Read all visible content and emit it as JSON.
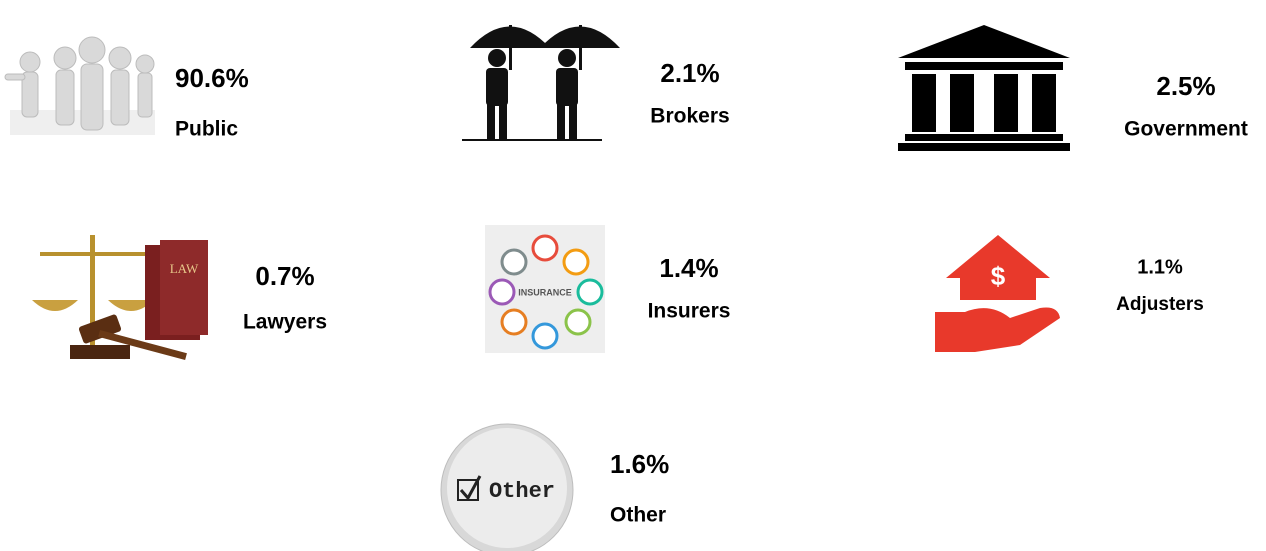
{
  "items": [
    {
      "percent": "90.6%",
      "label": "Public"
    },
    {
      "percent": "2.1%",
      "label": "Brokers"
    },
    {
      "percent": "2.5%",
      "label": "Government"
    },
    {
      "percent": "0.7%",
      "label": "Lawyers"
    },
    {
      "percent": "1.4%",
      "label": "Insurers"
    },
    {
      "percent": "1.1%",
      "label": "Adjusters"
    },
    {
      "percent": "1.6%",
      "label": "Other"
    }
  ],
  "icon_texts": {
    "law": "LAW",
    "insurance": "INSURANCE",
    "other": "Other"
  }
}
